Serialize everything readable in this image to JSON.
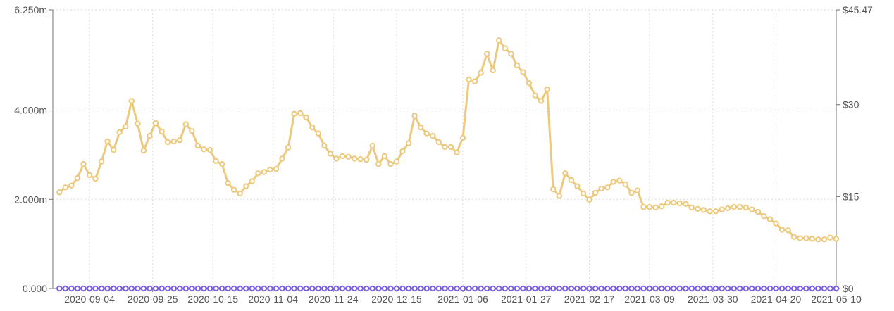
{
  "chart_data": {
    "type": "line",
    "x": [
      "2020-08-25",
      "2020-08-27",
      "2020-08-29",
      "2020-08-31",
      "2020-09-02",
      "2020-09-04",
      "2020-09-06",
      "2020-09-08",
      "2020-09-10",
      "2020-09-12",
      "2020-09-14",
      "2020-09-16",
      "2020-09-18",
      "2020-09-20",
      "2020-09-22",
      "2020-09-24",
      "2020-09-26",
      "2020-09-28",
      "2020-09-30",
      "2020-10-02",
      "2020-10-04",
      "2020-10-06",
      "2020-10-08",
      "2020-10-10",
      "2020-10-12",
      "2020-10-14",
      "2020-10-16",
      "2020-10-18",
      "2020-10-20",
      "2020-10-22",
      "2020-10-24",
      "2020-10-26",
      "2020-10-28",
      "2020-10-30",
      "2020-11-01",
      "2020-11-03",
      "2020-11-05",
      "2020-11-07",
      "2020-11-09",
      "2020-11-11",
      "2020-11-13",
      "2020-11-15",
      "2020-11-17",
      "2020-11-19",
      "2020-11-21",
      "2020-11-23",
      "2020-11-25",
      "2020-11-27",
      "2020-11-29",
      "2020-12-01",
      "2020-12-03",
      "2020-12-05",
      "2020-12-07",
      "2020-12-09",
      "2020-12-11",
      "2020-12-13",
      "2020-12-15",
      "2020-12-17",
      "2020-12-19",
      "2020-12-21",
      "2020-12-23",
      "2020-12-25",
      "2020-12-27",
      "2020-12-29",
      "2020-12-31",
      "2021-01-02",
      "2021-01-04",
      "2021-01-06",
      "2021-01-08",
      "2021-01-10",
      "2021-01-12",
      "2021-01-14",
      "2021-01-16",
      "2021-01-18",
      "2021-01-20",
      "2021-01-22",
      "2021-01-24",
      "2021-01-26",
      "2021-01-28",
      "2021-01-30",
      "2021-02-01",
      "2021-02-03",
      "2021-02-05",
      "2021-02-07",
      "2021-02-09",
      "2021-02-11",
      "2021-02-13",
      "2021-02-15",
      "2021-02-17",
      "2021-02-19",
      "2021-02-21",
      "2021-02-23",
      "2021-02-25",
      "2021-02-27",
      "2021-03-01",
      "2021-03-03",
      "2021-03-05",
      "2021-03-07",
      "2021-03-09",
      "2021-03-11",
      "2021-03-13",
      "2021-03-15",
      "2021-03-17",
      "2021-03-19",
      "2021-03-21",
      "2021-03-23",
      "2021-03-25",
      "2021-03-27",
      "2021-03-29",
      "2021-03-31",
      "2021-04-02",
      "2021-04-04",
      "2021-04-06",
      "2021-04-08",
      "2021-04-10",
      "2021-04-12",
      "2021-04-14",
      "2021-04-16",
      "2021-04-18",
      "2021-04-20",
      "2021-04-22",
      "2021-04-24",
      "2021-04-26",
      "2021-04-28",
      "2021-04-30",
      "2021-05-02",
      "2021-05-04",
      "2021-05-06",
      "2021-05-08",
      "2021-05-10"
    ],
    "series": [
      {
        "axis": "right",
        "color": "#edc97e",
        "values": [
          15.7,
          16.5,
          16.8,
          18.0,
          20.3,
          18.5,
          17.9,
          20.7,
          24.0,
          22.6,
          25.5,
          26.4,
          30.6,
          26.9,
          22.5,
          24.9,
          27.0,
          25.6,
          23.9,
          24.0,
          24.2,
          26.8,
          25.7,
          23.3,
          22.7,
          22.6,
          20.8,
          20.3,
          17.2,
          16.1,
          15.5,
          16.7,
          17.5,
          18.8,
          19.0,
          19.4,
          19.5,
          21.2,
          23.0,
          28.5,
          28.6,
          27.9,
          26.3,
          25.3,
          23.3,
          22.0,
          21.2,
          21.6,
          21.5,
          21.2,
          21.1,
          21.0,
          23.3,
          20.3,
          21.6,
          20.3,
          20.7,
          22.4,
          23.7,
          28.2,
          26.3,
          25.3,
          24.9,
          23.9,
          23.1,
          23.1,
          22.2,
          24.6,
          34.1,
          33.8,
          35.2,
          38.3,
          35.6,
          40.5,
          39.2,
          38.3,
          36.4,
          35.3,
          33.5,
          31.5,
          30.6,
          32.5,
          16.2,
          15.1,
          18.8,
          17.7,
          16.7,
          15.5,
          14.5,
          15.6,
          16.3,
          16.5,
          17.4,
          17.6,
          17.0,
          15.6,
          16.0,
          13.3,
          13.3,
          13.2,
          13.4,
          14.0,
          14.0,
          13.9,
          13.8,
          13.2,
          13.0,
          12.8,
          12.6,
          12.6,
          12.9,
          13.1,
          13.3,
          13.3,
          13.2,
          12.9,
          12.5,
          11.8,
          11.3,
          10.6,
          9.6,
          9.5,
          8.4,
          8.2,
          8.2,
          8.1,
          8.0,
          8.0,
          8.3,
          8.1
        ]
      },
      {
        "axis": "left",
        "color": "#7b61e0",
        "values": [
          0.56,
          0.57,
          0.58,
          0.58,
          0.59,
          0.6,
          0.6,
          0.6,
          0.61,
          0.62,
          0.62,
          0.63,
          0.65,
          0.66,
          0.66,
          0.67,
          0.72,
          0.72,
          0.73,
          0.73,
          0.74,
          0.75,
          0.75,
          0.76,
          0.8,
          0.81,
          0.81,
          0.82,
          0.83,
          0.84,
          0.84,
          0.85,
          0.85,
          0.85,
          0.85,
          0.85,
          0.94,
          0.97,
          0.98,
          1.0,
          1.01,
          1.02,
          1.04,
          1.06,
          1.09,
          1.12,
          1.14,
          1.17,
          1.21,
          1.36,
          1.4,
          1.44,
          1.48,
          1.51,
          1.54,
          1.58,
          1.61,
          1.63,
          1.68,
          1.76,
          1.79,
          1.81,
          1.85,
          1.87,
          1.94,
          1.98,
          2.05,
          2.15,
          2.21,
          2.25,
          2.33,
          1.94,
          1.97,
          2.08,
          2.08,
          1.98,
          1.98,
          2.0,
          2.06,
          2.11,
          2.18,
          2.29,
          2.37,
          2.42,
          2.48,
          2.52,
          2.55,
          2.57,
          2.59,
          2.62,
          3.21,
          3.19,
          3.16,
          3.16,
          3.16,
          3.52,
          3.86,
          3.81,
          3.81,
          3.82,
          3.84,
          3.86,
          3.87,
          3.88,
          3.88,
          3.87,
          3.86,
          3.84,
          3.85,
          3.89,
          4.24,
          4.32,
          4.34,
          4.36,
          4.4,
          4.52,
          4.55,
          4.56,
          5.2,
          5.55,
          5.54,
          5.52,
          5.5,
          5.5,
          5.46,
          5.42,
          5.34,
          5.28,
          5.3,
          3.45
        ]
      }
    ],
    "y_left": {
      "ticks": [
        "0.000",
        "2.000m",
        "4.000m",
        "6.250m"
      ],
      "tick_values": [
        0,
        2000000,
        4000000,
        6250000
      ],
      "ylim": [
        0,
        6250000
      ]
    },
    "y_right": {
      "ticks": [
        "$0",
        "$15",
        "$30",
        "$45.47"
      ],
      "tick_values": [
        0,
        15,
        30,
        45.47
      ],
      "ylim": [
        0,
        45.47
      ]
    },
    "x_ticks": [
      "2020-09-04",
      "2020-09-25",
      "2020-10-15",
      "2020-11-04",
      "2020-11-24",
      "2020-12-15",
      "2021-01-06",
      "2021-01-27",
      "2021-02-17",
      "2021-03-09",
      "2021-03-30",
      "2021-04-20",
      "2021-05-10"
    ],
    "grid": true,
    "title": "",
    "xlabel": "",
    "ylabel": ""
  }
}
